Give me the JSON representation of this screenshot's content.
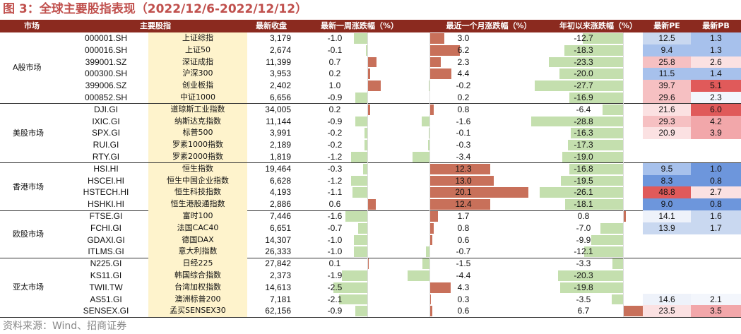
{
  "title": "图 3：全球主要股指表现（2022/12/6-2022/12/12）",
  "source": "资料来源：Wind、招商证券",
  "columns": {
    "market": "市场",
    "index": "主要股指",
    "close": "最新收盘",
    "week": "最新一周涨跌幅（%）",
    "month": "最近一个月涨跌幅（%）",
    "ytd": "年初以来涨跌幅（%）",
    "pe": "最新PE",
    "pb": "最新PB"
  },
  "colors": {
    "header_bg": "#8b2a1f",
    "name_bg": "#fef3cc",
    "bar_positive": "#c8705a",
    "bar_negative": "#c4dfae"
  },
  "groups": [
    {
      "market": "A股市场",
      "rows": [
        {
          "code": "000001.SH",
          "name": "上证综指",
          "close": "3,179",
          "week": -1.0,
          "month": 3.0,
          "ytd": -12.7,
          "pe": 12.5,
          "pb": 1.3
        },
        {
          "code": "000016.SH",
          "name": "上证50",
          "close": "2,674",
          "week": -0.1,
          "month": 6.2,
          "ytd": -18.3,
          "pe": 9.4,
          "pb": 1.3
        },
        {
          "code": "399001.SZ",
          "name": "深证成指",
          "close": "11,399",
          "week": 0.7,
          "month": 2.3,
          "ytd": -23.3,
          "pe": 25.8,
          "pb": 2.6
        },
        {
          "code": "000300.SH",
          "name": "沪深300",
          "close": "3,953",
          "week": 0.2,
          "month": 4.4,
          "ytd": -20.0,
          "pe": 11.5,
          "pb": 1.4
        },
        {
          "code": "399006.SZ",
          "name": "创业板指",
          "close": "2,402",
          "week": 1.0,
          "month": -0.2,
          "ytd": -27.7,
          "pe": 39.7,
          "pb": 5.1
        },
        {
          "code": "000852.SH",
          "name": "中证1000",
          "close": "6,656",
          "week": -0.9,
          "month": 0.2,
          "ytd": -16.9,
          "pe": 29.6,
          "pb": 2.3
        }
      ]
    },
    {
      "market": "美股市场",
      "rows": [
        {
          "code": "DJI.GI",
          "name": "道琼斯工业指数",
          "close": "34,005",
          "week": 0.2,
          "month": 0.8,
          "ytd": -6.4,
          "pe": 21.6,
          "pb": 6.0
        },
        {
          "code": "IXIC.GI",
          "name": "纳斯达克指数",
          "close": "11,144",
          "week": -0.9,
          "month": -1.6,
          "ytd": -28.8,
          "pe": 29.3,
          "pb": 4.2
        },
        {
          "code": "SPX.GI",
          "name": "标普500",
          "close": "3,991",
          "week": -0.2,
          "month": -0.1,
          "ytd": -16.3,
          "pe": 20.9,
          "pb": 3.9
        },
        {
          "code": "RUI.GI",
          "name": "罗素1000指数",
          "close": "2,189",
          "week": -0.2,
          "month": -0.3,
          "ytd": -17.3,
          "pe": null,
          "pb": null
        },
        {
          "code": "RTY.GI",
          "name": "罗素2000指数",
          "close": "1,819",
          "week": -1.2,
          "month": -3.4,
          "ytd": -19.0,
          "pe": null,
          "pb": null
        }
      ]
    },
    {
      "market": "香港市场",
      "rows": [
        {
          "code": "HSI.HI",
          "name": "恒生指数",
          "close": "19,464",
          "week": -0.3,
          "month": 12.3,
          "ytd": -16.8,
          "pe": 9.5,
          "pb": 1.0
        },
        {
          "code": "HSCEI.HI",
          "name": "恒生中国企业指数",
          "close": "6,628",
          "week": -1.2,
          "month": 13.0,
          "ytd": -19.5,
          "pe": 8.3,
          "pb": 0.8
        },
        {
          "code": "HSTECH.HI",
          "name": "恒生科技指数",
          "close": "4,193",
          "week": -1.1,
          "month": 20.1,
          "ytd": -26.1,
          "pe": 48.8,
          "pb": 2.7
        },
        {
          "code": "HSHKI.HI",
          "name": "恒生港股通指数",
          "close": "2,886",
          "week": 0.6,
          "month": 12.4,
          "ytd": -18.1,
          "pe": 9.0,
          "pb": 0.8
        }
      ]
    },
    {
      "market": "欧股市场",
      "rows": [
        {
          "code": "FTSE.GI",
          "name": "富时100",
          "close": "7,446",
          "week": -1.6,
          "month": 1.7,
          "ytd": 0.8,
          "pe": 14.1,
          "pb": 1.6
        },
        {
          "code": "FCHI.GI",
          "name": "法国CAC40",
          "close": "6,651",
          "week": -0.7,
          "month": 0.8,
          "ytd": -7.0,
          "pe": 13.9,
          "pb": 1.7
        },
        {
          "code": "GDAXI.GI",
          "name": "德国DAX",
          "close": "14,307",
          "week": -1.0,
          "month": 0.6,
          "ytd": -9.9,
          "pe": null,
          "pb": null
        },
        {
          "code": "ITLMS.GI",
          "name": "意大利指数",
          "close": "26,333",
          "week": -1.0,
          "month": -0.7,
          "ytd": -12.1,
          "pe": null,
          "pb": null
        }
      ]
    },
    {
      "market": "亚太市场",
      "rows": [
        {
          "code": "N225.GI",
          "name": "日经225",
          "close": "27,842",
          "week": 0.1,
          "month": -1.5,
          "ytd": -3.3,
          "pe": null,
          "pb": null
        },
        {
          "code": "KS11.GI",
          "name": "韩国综合指数",
          "close": "2,373",
          "week": -1.9,
          "month": -4.4,
          "ytd": -20.3,
          "pe": null,
          "pb": null
        },
        {
          "code": "TWII.TW",
          "name": "台湾加权指数",
          "close": "14,613",
          "week": -2.5,
          "month": 4.3,
          "ytd": -19.8,
          "pe": null,
          "pb": null
        },
        {
          "code": "AS51.GI",
          "name": "澳洲标普200",
          "close": "7,181",
          "week": -2.1,
          "month": 0.3,
          "ytd": -3.5,
          "pe": 14.6,
          "pb": 2.1
        },
        {
          "code": "SENSEX.GI",
          "name": "孟买SENSEX30",
          "close": "62,156",
          "week": -0.9,
          "month": 0.6,
          "ytd": 6.7,
          "pe": 23.5,
          "pb": 3.5
        }
      ]
    }
  ]
}
